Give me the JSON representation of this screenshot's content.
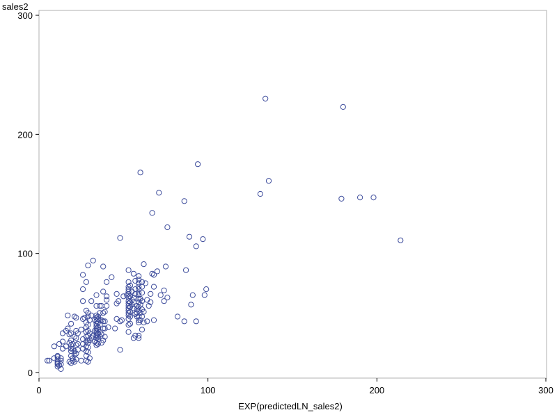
{
  "chart_data": {
    "type": "scatter",
    "title": "",
    "xlabel": "EXP(predictedLN_sales2)",
    "ylabel": "sales2",
    "xlim": [
      0,
      300
    ],
    "ylim": [
      0,
      300
    ],
    "xticks": [
      "0",
      "100",
      "200",
      "300"
    ],
    "yticks": [
      "0",
      "100",
      "200",
      "300"
    ],
    "grid": false,
    "marker_color": "#3C4B9B",
    "series": [
      {
        "points": [
          [
            5,
            10
          ],
          [
            6,
            10
          ],
          [
            9,
            22
          ],
          [
            9,
            12
          ],
          [
            11,
            5
          ],
          [
            11,
            7
          ],
          [
            11,
            8
          ],
          [
            11,
            9
          ],
          [
            11,
            11
          ],
          [
            11,
            13
          ],
          [
            11,
            14
          ],
          [
            12,
            24
          ],
          [
            12,
            6
          ],
          [
            13,
            3
          ],
          [
            13,
            7
          ],
          [
            13,
            10
          ],
          [
            13,
            12
          ],
          [
            14,
            20
          ],
          [
            14,
            26
          ],
          [
            14,
            33
          ],
          [
            16,
            22
          ],
          [
            16,
            35
          ],
          [
            17,
            37
          ],
          [
            17,
            48
          ],
          [
            18,
            9
          ],
          [
            18,
            25
          ],
          [
            18,
            32
          ],
          [
            19,
            8
          ],
          [
            19,
            14
          ],
          [
            19,
            18
          ],
          [
            19,
            20
          ],
          [
            19,
            23
          ],
          [
            19,
            27
          ],
          [
            19,
            33
          ],
          [
            19,
            41
          ],
          [
            20,
            10
          ],
          [
            20,
            12
          ],
          [
            20,
            20
          ],
          [
            20,
            24
          ],
          [
            21,
            9
          ],
          [
            21,
            15
          ],
          [
            21,
            18
          ],
          [
            21,
            30
          ],
          [
            21,
            47
          ],
          [
            22,
            11
          ],
          [
            22,
            16
          ],
          [
            22,
            23
          ],
          [
            22,
            29
          ],
          [
            22,
            35
          ],
          [
            22,
            46
          ],
          [
            23,
            19
          ],
          [
            23,
            24
          ],
          [
            23,
            33
          ],
          [
            25,
            36
          ],
          [
            25,
            10
          ],
          [
            26,
            20
          ],
          [
            26,
            24
          ],
          [
            26,
            28
          ],
          [
            26,
            45
          ],
          [
            26,
            60
          ],
          [
            26,
            70
          ],
          [
            26,
            82
          ],
          [
            27,
            46
          ],
          [
            28,
            10
          ],
          [
            28,
            14
          ],
          [
            28,
            18
          ],
          [
            28,
            22
          ],
          [
            28,
            26
          ],
          [
            28,
            30
          ],
          [
            28,
            34
          ],
          [
            28,
            38
          ],
          [
            28,
            42
          ],
          [
            28,
            52
          ],
          [
            28,
            76
          ],
          [
            29,
            9
          ],
          [
            29,
            17
          ],
          [
            29,
            21
          ],
          [
            29,
            25
          ],
          [
            29,
            27
          ],
          [
            29,
            31
          ],
          [
            29,
            35
          ],
          [
            29,
            40
          ],
          [
            29,
            47
          ],
          [
            29,
            50
          ],
          [
            29,
            90
          ],
          [
            30,
            12
          ],
          [
            30,
            27
          ],
          [
            30,
            33
          ],
          [
            30,
            44
          ],
          [
            31,
            29
          ],
          [
            31,
            48
          ],
          [
            31,
            60
          ],
          [
            32,
            31
          ],
          [
            32,
            94
          ],
          [
            33,
            26
          ],
          [
            33,
            35
          ],
          [
            33,
            44
          ],
          [
            34,
            23
          ],
          [
            34,
            25
          ],
          [
            34,
            29
          ],
          [
            34,
            31
          ],
          [
            34,
            33
          ],
          [
            34,
            35
          ],
          [
            34,
            37
          ],
          [
            34,
            39
          ],
          [
            34,
            41
          ],
          [
            34,
            43
          ],
          [
            34,
            46
          ],
          [
            34,
            48
          ],
          [
            34,
            56
          ],
          [
            34,
            65
          ],
          [
            35,
            24
          ],
          [
            35,
            28
          ],
          [
            35,
            30
          ],
          [
            35,
            33
          ],
          [
            35,
            36
          ],
          [
            35,
            38
          ],
          [
            35,
            42
          ],
          [
            35,
            45
          ],
          [
            35,
            47
          ],
          [
            36,
            30
          ],
          [
            36,
            34
          ],
          [
            36,
            40
          ],
          [
            36,
            44
          ],
          [
            36,
            50
          ],
          [
            36,
            56
          ],
          [
            37,
            25
          ],
          [
            37,
            32
          ],
          [
            37,
            44
          ],
          [
            37,
            56
          ],
          [
            38,
            27
          ],
          [
            38,
            37
          ],
          [
            38,
            43
          ],
          [
            38,
            50
          ],
          [
            38,
            68
          ],
          [
            38,
            89
          ],
          [
            39,
            30
          ],
          [
            39,
            37
          ],
          [
            39,
            43
          ],
          [
            39,
            51
          ],
          [
            40,
            56
          ],
          [
            40,
            61
          ],
          [
            40,
            64
          ],
          [
            40,
            76
          ],
          [
            41,
            38
          ],
          [
            43,
            80
          ],
          [
            45,
            37
          ],
          [
            46,
            45
          ],
          [
            46,
            58
          ],
          [
            46,
            66
          ],
          [
            47,
            60
          ],
          [
            48,
            113
          ],
          [
            48,
            19
          ],
          [
            48,
            43
          ],
          [
            49,
            44
          ],
          [
            50,
            64
          ],
          [
            52,
            65
          ],
          [
            53,
            34
          ],
          [
            53,
            40
          ],
          [
            53,
            45
          ],
          [
            53,
            48
          ],
          [
            53,
            50
          ],
          [
            53,
            52
          ],
          [
            53,
            54
          ],
          [
            53,
            56
          ],
          [
            53,
            58
          ],
          [
            53,
            60
          ],
          [
            53,
            63
          ],
          [
            53,
            66
          ],
          [
            53,
            68
          ],
          [
            53,
            70
          ],
          [
            53,
            72
          ],
          [
            53,
            76
          ],
          [
            53,
            86
          ],
          [
            54,
            41
          ],
          [
            54,
            47
          ],
          [
            54,
            51
          ],
          [
            54,
            55
          ],
          [
            54,
            59
          ],
          [
            54,
            64
          ],
          [
            54,
            73
          ],
          [
            55,
            57
          ],
          [
            55,
            61
          ],
          [
            55,
            68
          ],
          [
            56,
            29
          ],
          [
            56,
            54
          ],
          [
            56,
            59
          ],
          [
            56,
            63
          ],
          [
            56,
            83
          ],
          [
            57,
            31
          ],
          [
            57,
            49
          ],
          [
            57,
            66
          ],
          [
            57,
            70
          ],
          [
            57,
            77
          ],
          [
            58,
            47
          ],
          [
            58,
            50
          ],
          [
            58,
            53
          ],
          [
            58,
            56
          ],
          [
            59,
            29
          ],
          [
            59,
            31
          ],
          [
            59,
            42
          ],
          [
            59,
            44
          ],
          [
            59,
            47
          ],
          [
            59,
            52
          ],
          [
            59,
            55
          ],
          [
            59,
            59
          ],
          [
            59,
            62
          ],
          [
            59,
            65
          ],
          [
            59,
            67
          ],
          [
            59,
            70
          ],
          [
            59,
            72
          ],
          [
            59,
            75
          ],
          [
            59,
            78
          ],
          [
            59,
            81
          ],
          [
            60,
            44
          ],
          [
            60,
            50
          ],
          [
            60,
            57
          ],
          [
            60,
            62
          ],
          [
            60,
            168
          ],
          [
            61,
            36
          ],
          [
            61,
            47
          ],
          [
            61,
            53
          ],
          [
            61,
            60
          ],
          [
            61,
            67
          ],
          [
            61,
            72
          ],
          [
            61,
            76
          ],
          [
            62,
            42
          ],
          [
            62,
            51
          ],
          [
            62,
            91
          ],
          [
            63,
            75
          ],
          [
            64,
            61
          ],
          [
            64,
            43
          ],
          [
            65,
            56
          ],
          [
            66,
            59
          ],
          [
            66,
            66
          ],
          [
            67,
            134
          ],
          [
            67,
            83
          ],
          [
            68,
            44
          ],
          [
            68,
            72
          ],
          [
            68,
            82
          ],
          [
            70,
            85
          ],
          [
            71,
            151
          ],
          [
            72,
            65
          ],
          [
            74,
            60
          ],
          [
            74,
            69
          ],
          [
            75,
            89
          ],
          [
            76,
            63
          ],
          [
            76,
            122
          ],
          [
            82,
            47
          ],
          [
            86,
            43
          ],
          [
            86,
            144
          ],
          [
            87,
            86
          ],
          [
            89,
            114
          ],
          [
            90,
            57
          ],
          [
            91,
            65
          ],
          [
            93,
            43
          ],
          [
            93,
            106
          ],
          [
            94,
            175
          ],
          [
            97,
            112
          ],
          [
            98,
            65
          ],
          [
            99,
            70
          ],
          [
            131,
            150
          ],
          [
            134,
            230
          ],
          [
            136,
            161
          ],
          [
            179,
            146
          ],
          [
            180,
            223
          ],
          [
            190,
            147
          ],
          [
            198,
            147
          ],
          [
            214,
            111
          ]
        ]
      }
    ]
  }
}
